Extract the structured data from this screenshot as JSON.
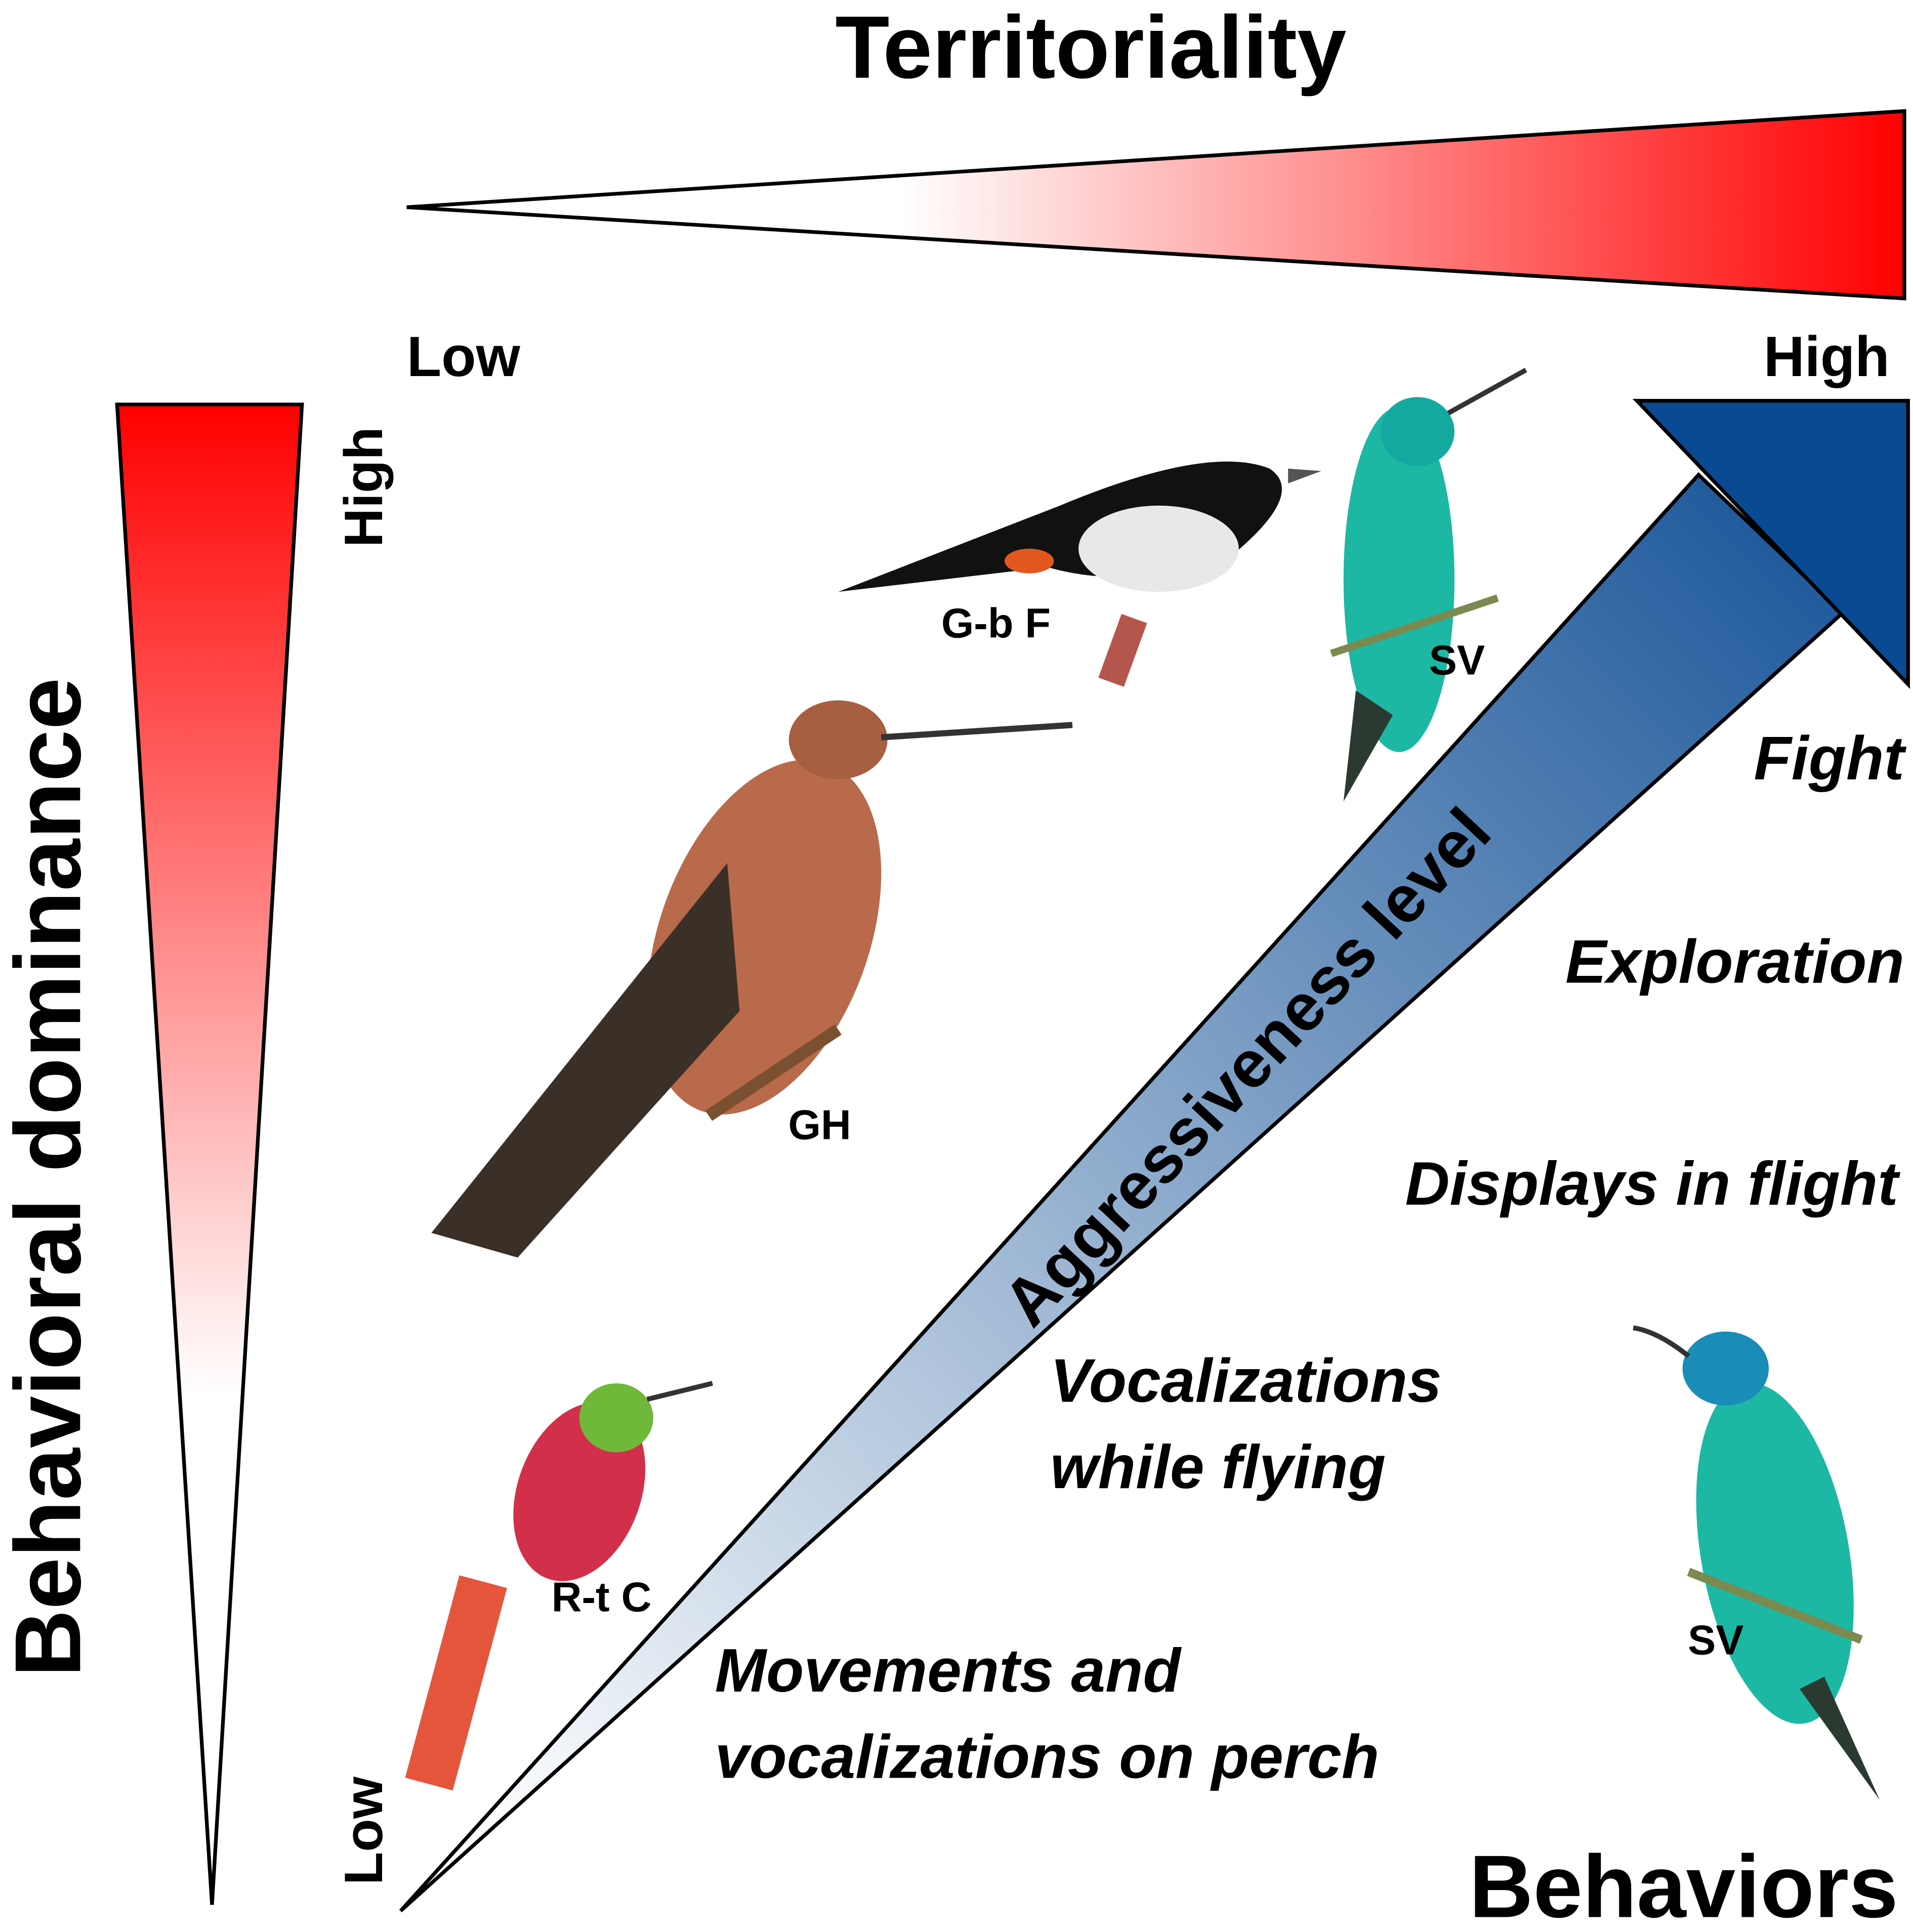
{
  "title": "Territoriality",
  "territoriality_scale": {
    "low": "Low",
    "high": "High"
  },
  "dominance_scale": {
    "label": "Behavioral dominance",
    "high": "High",
    "low": "Low"
  },
  "aggressiveness": {
    "label": "Aggressiveness level"
  },
  "behaviors": {
    "label": "Behaviors",
    "items": [
      {
        "lines": [
          "Fight"
        ]
      },
      {
        "lines": [
          "Exploration"
        ]
      },
      {
        "lines": [
          "Displays in flight"
        ]
      },
      {
        "lines": [
          "Vocalizations",
          "while flying"
        ]
      },
      {
        "lines": [
          "Movements and",
          "vocalizations on perch"
        ]
      }
    ]
  },
  "birds": [
    "G-b F",
    "SV",
    "GH",
    "R-t C",
    "SV"
  ]
}
